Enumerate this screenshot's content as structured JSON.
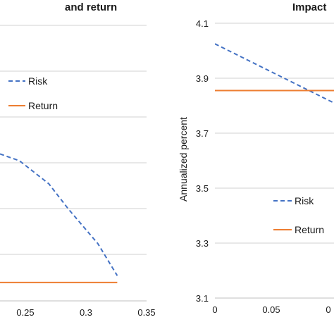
{
  "chart_data": [
    {
      "type": "line",
      "title": "and return",
      "xlabel": "",
      "ylabel": "",
      "x_ticks": [
        "0.25",
        "0.3",
        "0.35"
      ],
      "xlim": [
        0.2,
        0.35
      ],
      "ylim": [
        0,
        6
      ],
      "grid": true,
      "legend_position": "upper-left",
      "series": [
        {
          "name": "Risk",
          "style": "dashed",
          "color": "#4472C4",
          "x": [
            0.2,
            0.22,
            0.25,
            0.27,
            0.3,
            0.32
          ],
          "y": [
            3.2,
            3.05,
            2.55,
            2.0,
            1.25,
            0.55
          ]
        },
        {
          "name": "Return",
          "style": "solid",
          "color": "#ED7D31",
          "x": [
            0.2,
            0.32
          ],
          "y": [
            0.4,
            0.4
          ]
        }
      ]
    },
    {
      "type": "line",
      "title": "Impact",
      "xlabel": "",
      "ylabel": "Annualized percent",
      "x_ticks": [
        "0",
        "0.05",
        "0"
      ],
      "y_ticks": [
        "3.1",
        "3.3",
        "3.5",
        "3.7",
        "3.9",
        "4.1"
      ],
      "xlim": [
        0,
        0.095
      ],
      "ylim": [
        3.1,
        4.1
      ],
      "grid": true,
      "legend_position": "center",
      "series": [
        {
          "name": "Risk",
          "style": "dashed",
          "color": "#4472C4",
          "x": [
            0,
            0.095
          ],
          "y": [
            4.025,
            3.81
          ]
        },
        {
          "name": "Return",
          "style": "solid",
          "color": "#ED7D31",
          "x": [
            0,
            0.095
          ],
          "y": [
            3.855,
            3.855
          ]
        }
      ]
    }
  ]
}
